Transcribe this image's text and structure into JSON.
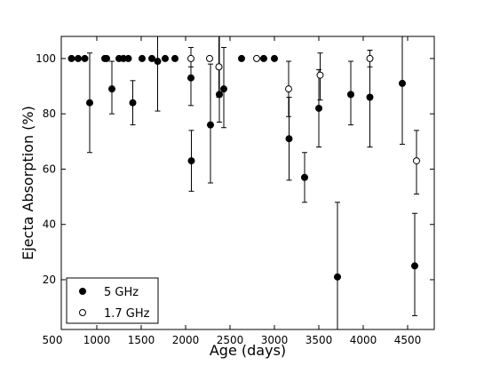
{
  "chart_data": {
    "type": "scatter",
    "xlabel": "Age (days)",
    "ylabel": "Ejecta Absorption (%)",
    "xlim": [
      600,
      4800
    ],
    "ylim": [
      2,
      108
    ],
    "xticks": [
      500,
      1000,
      1500,
      2000,
      2500,
      3000,
      3500,
      4000,
      4500
    ],
    "yticks": [
      20,
      40,
      60,
      80,
      100
    ],
    "legend_position": "bottom-left",
    "series": [
      {
        "name": "5 GHz",
        "marker": "filled-circle",
        "color": "#000000",
        "points": [
          {
            "x": 715,
            "y": 100
          },
          {
            "x": 790,
            "y": 100
          },
          {
            "x": 865,
            "y": 100
          },
          {
            "x": 920,
            "y": 84,
            "ylo": 66,
            "yhi": 102
          },
          {
            "x": 1090,
            "y": 100
          },
          {
            "x": 1110,
            "y": 100
          },
          {
            "x": 1170,
            "y": 89,
            "ylo": 80,
            "yhi": 99
          },
          {
            "x": 1250,
            "y": 100
          },
          {
            "x": 1300,
            "y": 100
          },
          {
            "x": 1355,
            "y": 100
          },
          {
            "x": 1405,
            "y": 84,
            "ylo": 76,
            "yhi": 92
          },
          {
            "x": 1510,
            "y": 100
          },
          {
            "x": 1620,
            "y": 100
          },
          {
            "x": 1685,
            "y": 99,
            "ylo": 81,
            "yhi": 108
          },
          {
            "x": 1770,
            "y": 100
          },
          {
            "x": 1880,
            "y": 100
          },
          {
            "x": 2060,
            "y": 93,
            "ylo": 83,
            "yhi": 100
          },
          {
            "x": 2065,
            "y": 63,
            "ylo": 52,
            "yhi": 74
          },
          {
            "x": 2280,
            "y": 76,
            "ylo": 55,
            "yhi": 98
          },
          {
            "x": 2380,
            "y": 87,
            "ylo": 77,
            "yhi": 108
          },
          {
            "x": 2430,
            "y": 89,
            "ylo": 75,
            "yhi": 104
          },
          {
            "x": 2630,
            "y": 100
          },
          {
            "x": 2880,
            "y": 100
          },
          {
            "x": 3000,
            "y": 100
          },
          {
            "x": 3165,
            "y": 71,
            "ylo": 56,
            "yhi": 86
          },
          {
            "x": 3340,
            "y": 57,
            "ylo": 48,
            "yhi": 66
          },
          {
            "x": 3500,
            "y": 82,
            "ylo": 68,
            "yhi": 96
          },
          {
            "x": 3710,
            "y": 21,
            "ylo": 2,
            "yhi": 48
          },
          {
            "x": 3860,
            "y": 87,
            "ylo": 76,
            "yhi": 99
          },
          {
            "x": 4075,
            "y": 86,
            "ylo": 68,
            "yhi": 103
          },
          {
            "x": 4440,
            "y": 91,
            "ylo": 69,
            "yhi": 108
          },
          {
            "x": 4580,
            "y": 25,
            "ylo": 7,
            "yhi": 44
          }
        ]
      },
      {
        "name": "1.7 GHz",
        "marker": "open-circle",
        "color": "#000000",
        "points": [
          {
            "x": 2060,
            "y": 100,
            "ylo": 97,
            "yhi": 104
          },
          {
            "x": 2270,
            "y": 100,
            "ylo": 100,
            "yhi": 100
          },
          {
            "x": 2375,
            "y": 97,
            "ylo": 86,
            "yhi": 108
          },
          {
            "x": 2800,
            "y": 100,
            "ylo": 100,
            "yhi": 100
          },
          {
            "x": 3160,
            "y": 89,
            "ylo": 79,
            "yhi": 99
          },
          {
            "x": 3515,
            "y": 94,
            "ylo": 85,
            "yhi": 102
          },
          {
            "x": 4075,
            "y": 100,
            "ylo": 97,
            "yhi": 103
          },
          {
            "x": 4600,
            "y": 63,
            "ylo": 51,
            "yhi": 74
          }
        ]
      }
    ]
  }
}
